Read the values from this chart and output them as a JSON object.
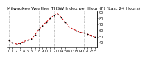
{
  "title": "Milwaukee Weather THSW Index per Hour (F) (Last 24 Hours)",
  "hours": [
    0,
    1,
    2,
    3,
    4,
    5,
    6,
    7,
    8,
    9,
    10,
    11,
    12,
    13,
    14,
    15,
    16,
    17,
    18,
    19,
    20,
    21,
    22,
    23
  ],
  "values": [
    44,
    40,
    38,
    39,
    42,
    44,
    46,
    53,
    62,
    68,
    74,
    80,
    85,
    88,
    82,
    74,
    67,
    63,
    60,
    57,
    56,
    54,
    52,
    49
  ],
  "line_color": "#cc0000",
  "marker_color": "#000000",
  "bg_color": "#ffffff",
  "plot_bg": "#ffffff",
  "grid_color": "#888888",
  "ylim": [
    32,
    92
  ],
  "yticks": [
    40,
    50,
    60,
    70,
    80,
    90
  ],
  "ytick_labels": [
    "40",
    "50",
    "60",
    "70",
    "80",
    "90"
  ],
  "vgrid_hours": [
    0,
    4,
    8,
    12,
    16,
    20
  ],
  "title_fontsize": 4.5,
  "tick_fontsize": 3.5,
  "line_width": 0.7,
  "marker_size": 1.8
}
